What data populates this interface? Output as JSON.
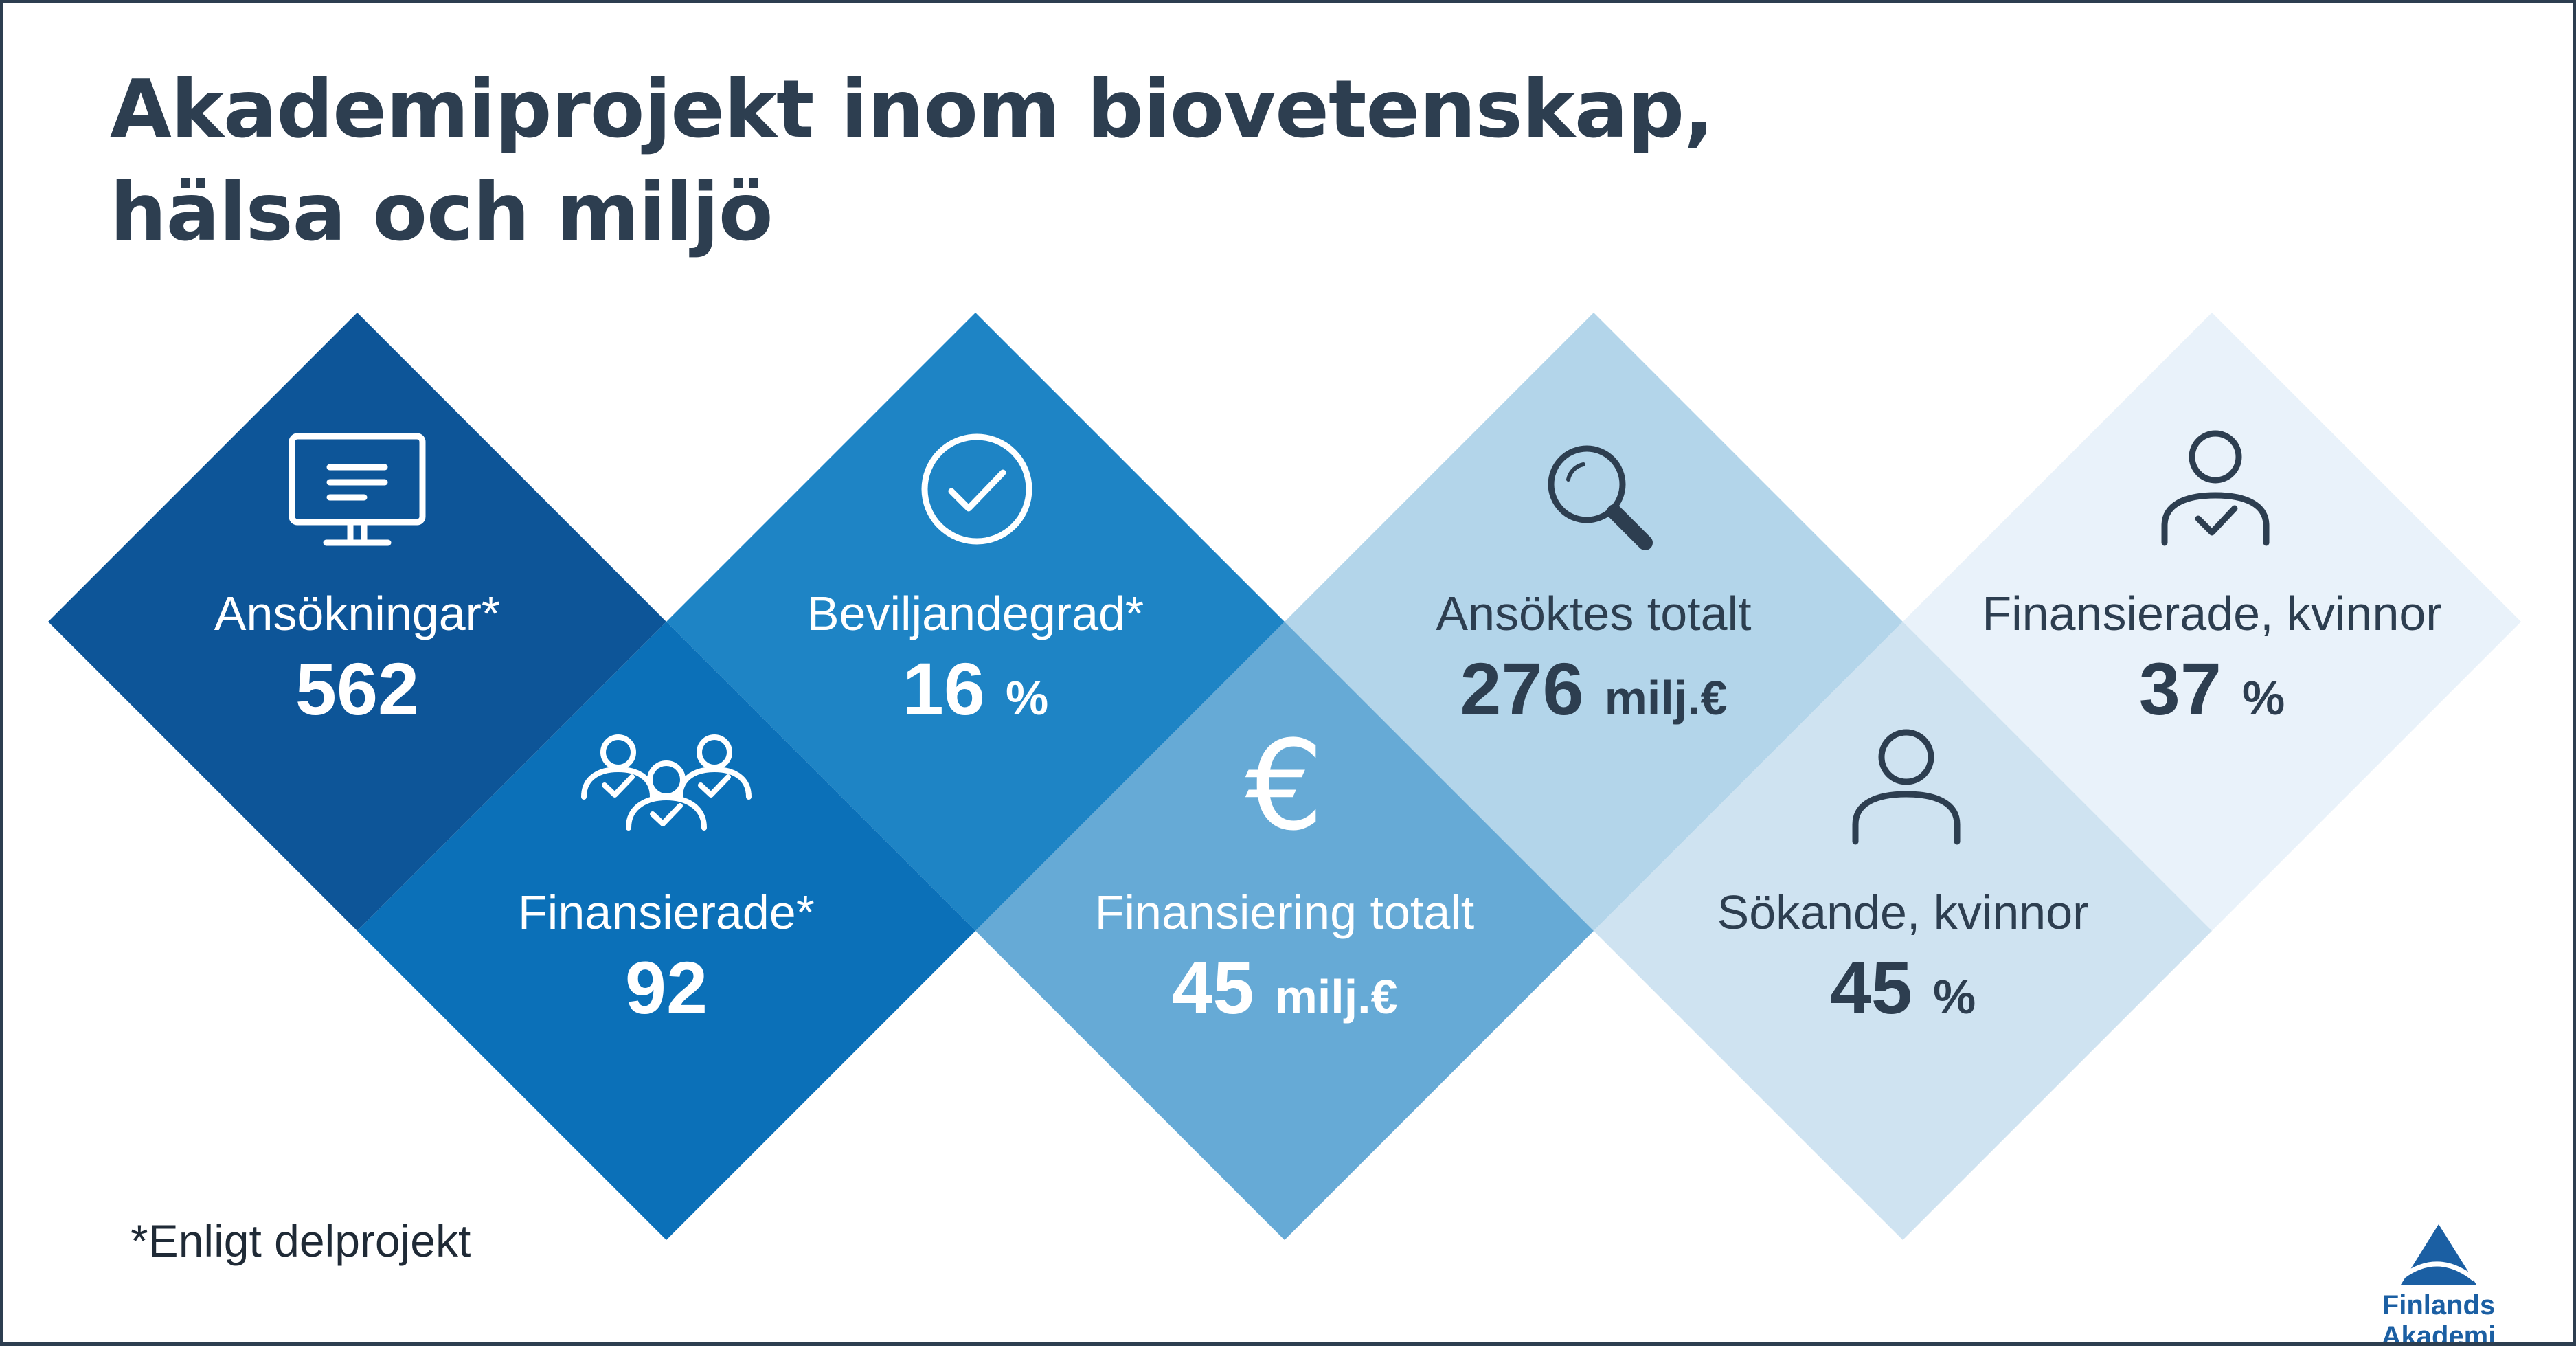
{
  "title": {
    "line1": "Akademiprojekt inom biovetenskap,",
    "line2": "hälsa och miljö"
  },
  "colors": {
    "title": "#2d3e50",
    "tile_dark": "#0d5598",
    "tile_mid": "#0b70b8",
    "tile_blue": "#1e84c5",
    "tile_medium_light": "#66aad6",
    "tile_light": "#b3d5ea",
    "tile_lighter": "#cfe3f1",
    "tile_lightest": "#e9f2fa",
    "text_light": "#ffffff",
    "text_dark": "#2d3e50"
  },
  "tiles": [
    {
      "id": "ansokningar",
      "label": "Ansökningar*",
      "value": "562",
      "unit": "",
      "icon": "monitor-icon"
    },
    {
      "id": "finansierade",
      "label": "Finansierade*",
      "value": "92",
      "unit": "",
      "icon": "group-check-icon"
    },
    {
      "id": "beviljandegrad",
      "label": "Beviljandegrad*",
      "value": "16",
      "unit": "%",
      "icon": "checkmark-circle-icon"
    },
    {
      "id": "finansiering-totalt",
      "label": "Finansiering totalt",
      "value": "45",
      "unit": "milj.€",
      "icon": "euro-icon"
    },
    {
      "id": "ansoktes-totalt",
      "label": "Ansöktes totalt",
      "value": "276",
      "unit": "milj.€",
      "icon": "magnifier-icon"
    },
    {
      "id": "sokande-kvinnor",
      "label": "Sökande, kvinnor",
      "value": "45",
      "unit": "%",
      "icon": "person-icon"
    },
    {
      "id": "finansierade-kvinnor",
      "label": "Finansierade, kvinnor",
      "value": "37",
      "unit": "%",
      "icon": "person-check-icon"
    }
  ],
  "footnote": "*Enligt delprojekt",
  "logo": {
    "text": "Finlands Akademi",
    "icon": "finlands-akademi-logo-icon"
  }
}
